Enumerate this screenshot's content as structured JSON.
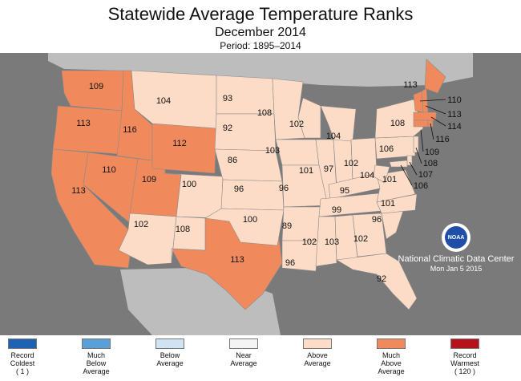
{
  "header": {
    "title": "Statewide Average Temperature Ranks",
    "subtitle": "December 2014",
    "period": "Period: 1895–2014"
  },
  "colors": {
    "record_coldest": "#1d62b3",
    "much_below": "#5aa0d8",
    "below": "#cfe3f3",
    "near": "#f4f4f4",
    "above": "#fcdcc6",
    "much_above": "#f08a5c",
    "record_warmest": "#b5121b",
    "ocean": "#7a7a7a",
    "land_outside": "#bdbdbd"
  },
  "states": [
    {
      "id": "WA",
      "rank": "109",
      "category": "much_above"
    },
    {
      "id": "OR",
      "rank": "113",
      "category": "much_above"
    },
    {
      "id": "CA",
      "rank": "113",
      "category": "much_above"
    },
    {
      "id": "ID",
      "rank": "116",
      "category": "much_above"
    },
    {
      "id": "NV",
      "rank": "110",
      "category": "much_above"
    },
    {
      "id": "UT",
      "rank": "109",
      "category": "much_above"
    },
    {
      "id": "WY",
      "rank": "112",
      "category": "much_above"
    },
    {
      "id": "TX",
      "rank": "113",
      "category": "much_above"
    },
    {
      "id": "MT",
      "rank": "104",
      "category": "above"
    },
    {
      "id": "AZ",
      "rank": "102",
      "category": "above"
    },
    {
      "id": "CO",
      "rank": "100",
      "category": "above"
    },
    {
      "id": "NM",
      "rank": "108",
      "category": "above"
    },
    {
      "id": "ND",
      "rank": "93",
      "category": "above"
    },
    {
      "id": "SD",
      "rank": "92",
      "category": "above"
    },
    {
      "id": "NE",
      "rank": "86",
      "category": "above"
    },
    {
      "id": "KS",
      "rank": "96",
      "category": "above"
    },
    {
      "id": "OK",
      "rank": "100",
      "category": "above"
    },
    {
      "id": "MN",
      "rank": "108",
      "category": "above"
    },
    {
      "id": "IA",
      "rank": "103",
      "category": "above"
    },
    {
      "id": "MO",
      "rank": "96",
      "category": "above"
    },
    {
      "id": "AR",
      "rank": "89",
      "category": "above"
    },
    {
      "id": "LA",
      "rank": "96",
      "category": "above"
    },
    {
      "id": "WI",
      "rank": "102",
      "category": "above"
    },
    {
      "id": "IL",
      "rank": "101",
      "category": "above"
    },
    {
      "id": "MI",
      "rank": "104",
      "category": "above"
    },
    {
      "id": "IN",
      "rank": "97",
      "category": "above"
    },
    {
      "id": "OH",
      "rank": "102",
      "category": "above"
    },
    {
      "id": "KY",
      "rank": "95",
      "category": "above"
    },
    {
      "id": "TN",
      "rank": "99",
      "category": "above"
    },
    {
      "id": "MS",
      "rank": "102",
      "category": "above"
    },
    {
      "id": "AL",
      "rank": "103",
      "category": "above"
    },
    {
      "id": "GA",
      "rank": "102",
      "category": "above"
    },
    {
      "id": "FL",
      "rank": "92",
      "category": "above"
    },
    {
      "id": "SC",
      "rank": "96",
      "category": "above"
    },
    {
      "id": "NC",
      "rank": "101",
      "category": "above"
    },
    {
      "id": "VA",
      "rank": "101",
      "category": "above"
    },
    {
      "id": "WV",
      "rank": "104",
      "category": "above"
    },
    {
      "id": "PA",
      "rank": "106",
      "category": "above"
    },
    {
      "id": "NY",
      "rank": "108",
      "category": "above"
    },
    {
      "id": "ME",
      "rank": "113",
      "category": "much_above"
    },
    {
      "id": "VT",
      "rank": "",
      "category": "much_above"
    },
    {
      "id": "NH",
      "rank": "",
      "category": "much_above"
    },
    {
      "id": "MA",
      "rank": "",
      "category": "much_above"
    },
    {
      "id": "CT",
      "rank": "",
      "category": "much_above"
    },
    {
      "id": "RI",
      "rank": "",
      "category": "much_above"
    },
    {
      "id": "NJ",
      "rank": "",
      "category": "above"
    },
    {
      "id": "DE",
      "rank": "",
      "category": "above"
    },
    {
      "id": "MD",
      "rank": "",
      "category": "above"
    }
  ],
  "callouts": [
    {
      "id": "VT",
      "rank": "110"
    },
    {
      "id": "NH",
      "rank": "113"
    },
    {
      "id": "MA",
      "rank": "114"
    },
    {
      "id": "RI",
      "rank": "116"
    },
    {
      "id": "CT",
      "rank": "109"
    },
    {
      "id": "NJ",
      "rank": "108"
    },
    {
      "id": "DE",
      "rank": "107"
    },
    {
      "id": "MD",
      "rank": "106"
    }
  ],
  "legend": [
    {
      "label": "Record Coldest (1)",
      "lines": [
        "Record",
        "Coldest",
        "( 1 )"
      ],
      "color": "#1d62b3"
    },
    {
      "label": "Much Below Average",
      "lines": [
        "Much",
        "Below",
        "Average"
      ],
      "color": "#5aa0d8"
    },
    {
      "label": "Below Average",
      "lines": [
        "Below",
        "Average"
      ],
      "color": "#cfe3f3"
    },
    {
      "label": "Near Average",
      "lines": [
        "Near",
        "Average"
      ],
      "color": "#f4f4f4"
    },
    {
      "label": "Above Average",
      "lines": [
        "Above",
        "Average"
      ],
      "color": "#fcdcc6"
    },
    {
      "label": "Much Above Average",
      "lines": [
        "Much",
        "Above",
        "Average"
      ],
      "color": "#f08a5c"
    },
    {
      "label": "Record Warmest (120)",
      "lines": [
        "Record",
        "Warmest",
        "( 120 )"
      ],
      "color": "#b5121b"
    }
  ],
  "credit": {
    "logo_text": "NOAA",
    "org": "National Climatic Data Center",
    "date": "Mon Jan  5 2015"
  }
}
